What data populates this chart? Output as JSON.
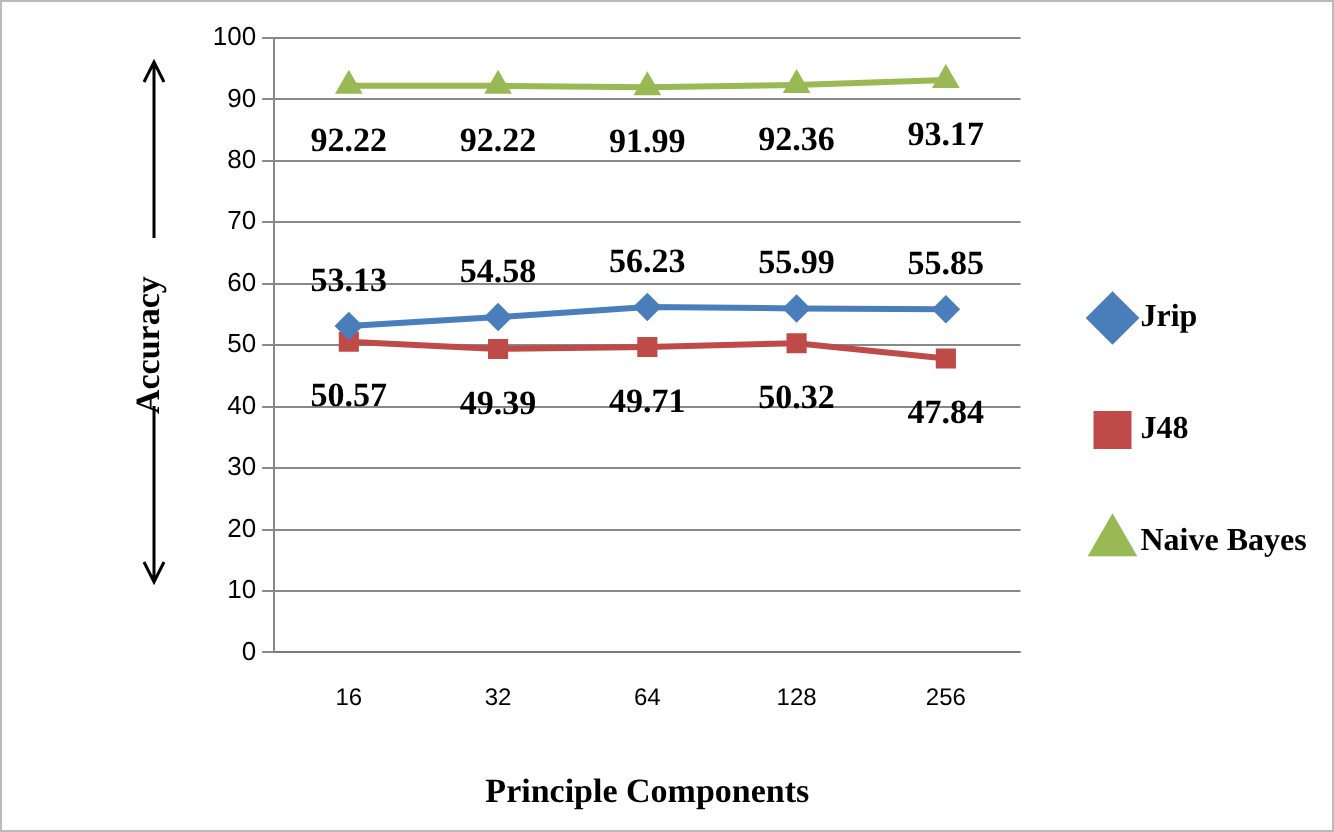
{
  "chart_data": {
    "type": "line",
    "xlabel": "Principle Components",
    "ylabel": "Accuracy",
    "categories": [
      "16",
      "32",
      "64",
      "128",
      "256"
    ],
    "series": [
      {
        "name": "Jrip",
        "color": "#4a7ebb",
        "marker": "diamond",
        "values": [
          53.13,
          54.58,
          56.23,
          55.99,
          55.85
        ]
      },
      {
        "name": "J48",
        "color": "#be4b48",
        "marker": "square",
        "values": [
          50.57,
          49.39,
          49.71,
          50.32,
          47.84
        ]
      },
      {
        "name": "Naive Bayes",
        "color": "#98b954",
        "marker": "triangle",
        "values": [
          92.22,
          92.22,
          91.99,
          92.36,
          93.17
        ]
      }
    ],
    "ylim": [
      0,
      100
    ],
    "yticks": [
      0,
      10,
      20,
      30,
      40,
      50,
      60,
      70,
      80,
      90,
      100
    ],
    "grid": "y",
    "legend": "right",
    "data_labels": true
  }
}
